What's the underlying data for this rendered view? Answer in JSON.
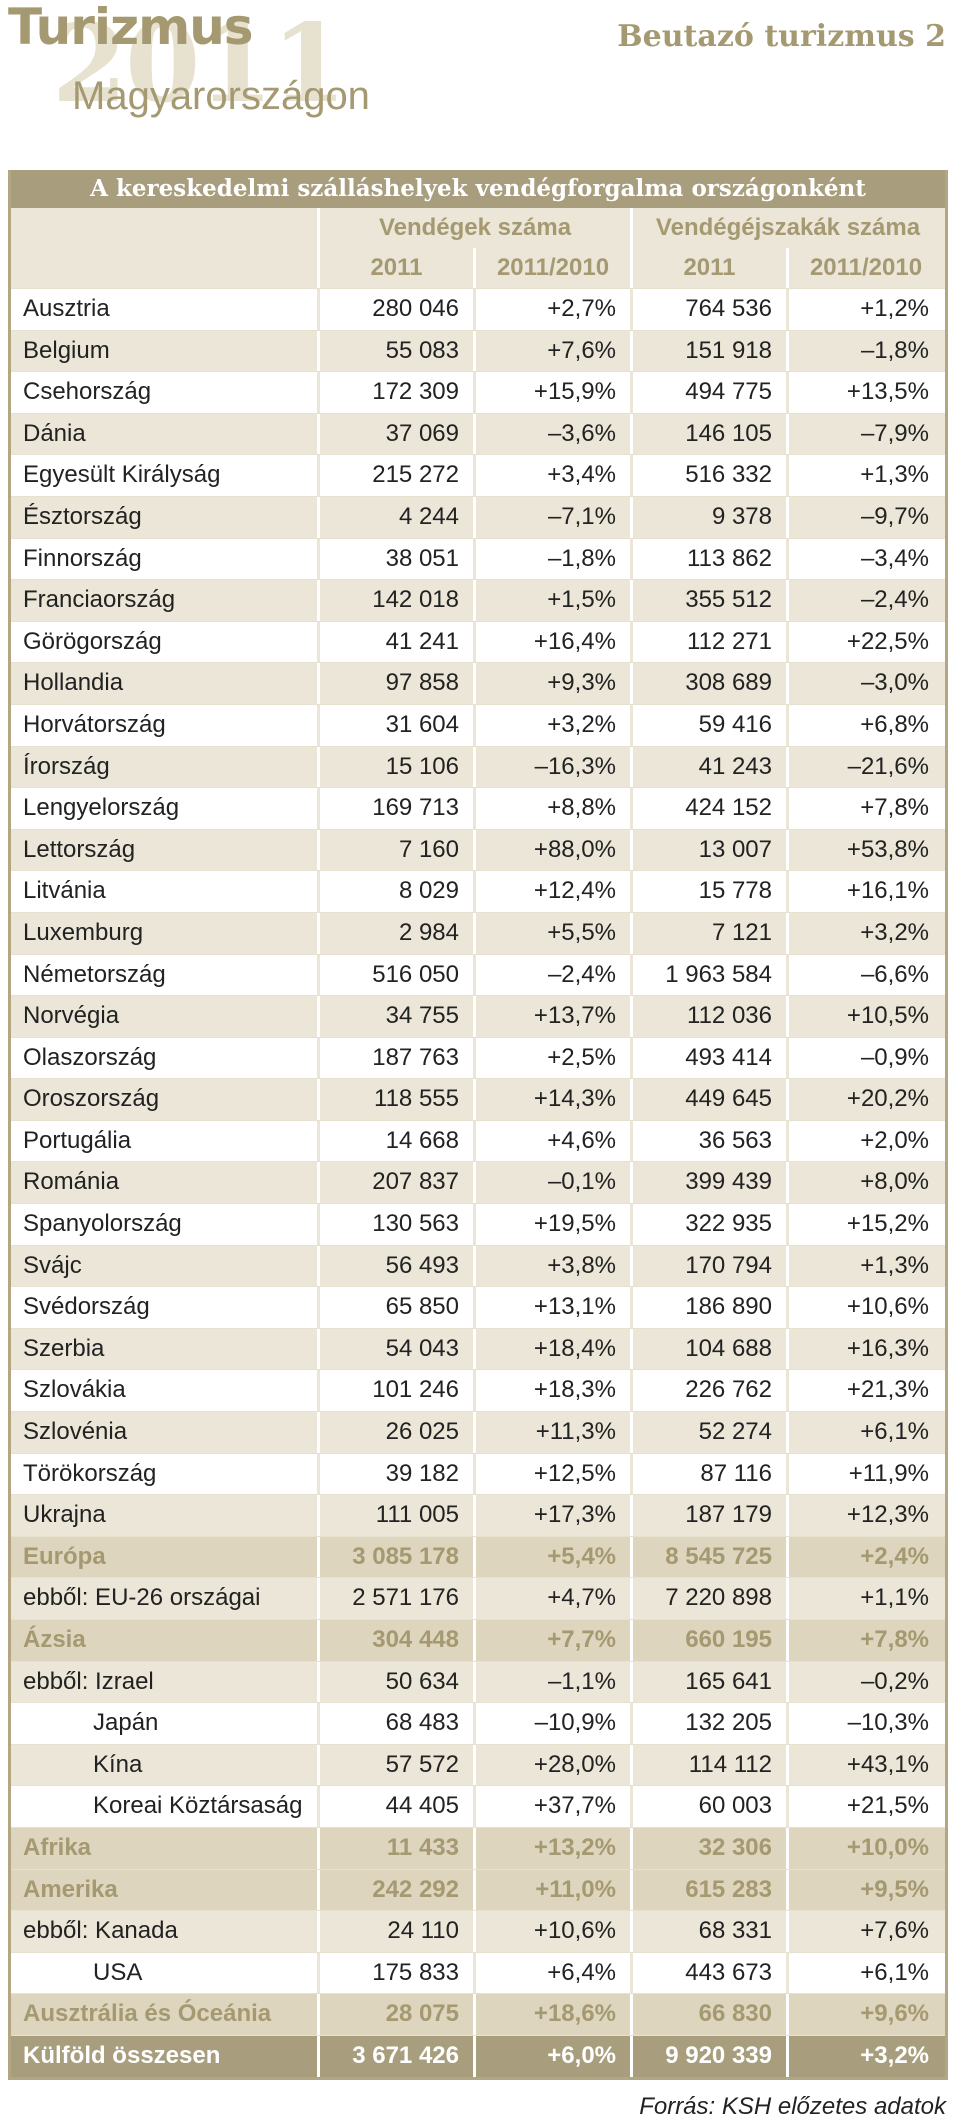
{
  "header": {
    "title": "Turizmus",
    "year": "2011",
    "subtitle": "Magyarországon",
    "right_title": "Beutazó turizmus 2"
  },
  "table": {
    "title": "A kereskedelmi szálláshelyek vendégforgalma országonként",
    "group_headers": [
      "Vendégek száma",
      "Vendégéjszakák száma"
    ],
    "sub_headers": [
      "2011",
      "2011/2010",
      "2011",
      "2011/2010"
    ],
    "rows": [
      {
        "name": "Ausztria",
        "guests": "280 046",
        "guests_change": "+2,7%",
        "nights": "764 536",
        "nights_change": "+1,2%",
        "type": "normal"
      },
      {
        "name": "Belgium",
        "guests": "55 083",
        "guests_change": "+7,6%",
        "nights": "151 918",
        "nights_change": "–1,8%",
        "type": "normal"
      },
      {
        "name": "Csehország",
        "guests": "172 309",
        "guests_change": "+15,9%",
        "nights": "494 775",
        "nights_change": "+13,5%",
        "type": "normal"
      },
      {
        "name": "Dánia",
        "guests": "37 069",
        "guests_change": "–3,6%",
        "nights": "146 105",
        "nights_change": "–7,9%",
        "type": "normal"
      },
      {
        "name": "Egyesült Királyság",
        "guests": "215 272",
        "guests_change": "+3,4%",
        "nights": "516 332",
        "nights_change": "+1,3%",
        "type": "normal"
      },
      {
        "name": "Észtország",
        "guests": "4 244",
        "guests_change": "–7,1%",
        "nights": "9 378",
        "nights_change": "–9,7%",
        "type": "normal"
      },
      {
        "name": "Finnország",
        "guests": "38 051",
        "guests_change": "–1,8%",
        "nights": "113 862",
        "nights_change": "–3,4%",
        "type": "normal"
      },
      {
        "name": "Franciaország",
        "guests": "142 018",
        "guests_change": "+1,5%",
        "nights": "355 512",
        "nights_change": "–2,4%",
        "type": "normal"
      },
      {
        "name": "Görögország",
        "guests": "41 241",
        "guests_change": "+16,4%",
        "nights": "112 271",
        "nights_change": "+22,5%",
        "type": "normal"
      },
      {
        "name": "Hollandia",
        "guests": "97 858",
        "guests_change": "+9,3%",
        "nights": "308 689",
        "nights_change": "–3,0%",
        "type": "normal"
      },
      {
        "name": "Horvátország",
        "guests": "31 604",
        "guests_change": "+3,2%",
        "nights": "59 416",
        "nights_change": "+6,8%",
        "type": "normal"
      },
      {
        "name": "Írország",
        "guests": "15 106",
        "guests_change": "–16,3%",
        "nights": "41 243",
        "nights_change": "–21,6%",
        "type": "normal"
      },
      {
        "name": "Lengyelország",
        "guests": "169 713",
        "guests_change": "+8,8%",
        "nights": "424 152",
        "nights_change": "+7,8%",
        "type": "normal"
      },
      {
        "name": "Lettország",
        "guests": "7 160",
        "guests_change": "+88,0%",
        "nights": "13 007",
        "nights_change": "+53,8%",
        "type": "normal"
      },
      {
        "name": "Litvánia",
        "guests": "8 029",
        "guests_change": "+12,4%",
        "nights": "15 778",
        "nights_change": "+16,1%",
        "type": "normal"
      },
      {
        "name": "Luxemburg",
        "guests": "2 984",
        "guests_change": "+5,5%",
        "nights": "7 121",
        "nights_change": "+3,2%",
        "type": "normal"
      },
      {
        "name": "Németország",
        "guests": "516 050",
        "guests_change": "–2,4%",
        "nights": "1 963 584",
        "nights_change": "–6,6%",
        "type": "normal"
      },
      {
        "name": "Norvégia",
        "guests": "34 755",
        "guests_change": "+13,7%",
        "nights": "112 036",
        "nights_change": "+10,5%",
        "type": "normal"
      },
      {
        "name": "Olaszország",
        "guests": "187 763",
        "guests_change": "+2,5%",
        "nights": "493 414",
        "nights_change": "–0,9%",
        "type": "normal"
      },
      {
        "name": "Oroszország",
        "guests": "118 555",
        "guests_change": "+14,3%",
        "nights": "449 645",
        "nights_change": "+20,2%",
        "type": "normal"
      },
      {
        "name": "Portugália",
        "guests": "14 668",
        "guests_change": "+4,6%",
        "nights": "36 563",
        "nights_change": "+2,0%",
        "type": "normal"
      },
      {
        "name": "Románia",
        "guests": "207 837",
        "guests_change": "–0,1%",
        "nights": "399 439",
        "nights_change": "+8,0%",
        "type": "normal"
      },
      {
        "name": "Spanyolország",
        "guests": "130 563",
        "guests_change": "+19,5%",
        "nights": "322 935",
        "nights_change": "+15,2%",
        "type": "normal"
      },
      {
        "name": "Svájc",
        "guests": "56 493",
        "guests_change": "+3,8%",
        "nights": "170 794",
        "nights_change": "+1,3%",
        "type": "normal"
      },
      {
        "name": "Svédország",
        "guests": "65 850",
        "guests_change": "+13,1%",
        "nights": "186 890",
        "nights_change": "+10,6%",
        "type": "normal"
      },
      {
        "name": "Szerbia",
        "guests": "54 043",
        "guests_change": "+18,4%",
        "nights": "104 688",
        "nights_change": "+16,3%",
        "type": "normal"
      },
      {
        "name": "Szlovákia",
        "guests": "101 246",
        "guests_change": "+18,3%",
        "nights": "226 762",
        "nights_change": "+21,3%",
        "type": "normal"
      },
      {
        "name": "Szlovénia",
        "guests": "26 025",
        "guests_change": "+11,3%",
        "nights": "52 274",
        "nights_change": "+6,1%",
        "type": "normal"
      },
      {
        "name": "Törökország",
        "guests": "39 182",
        "guests_change": "+12,5%",
        "nights": "87 116",
        "nights_change": "+11,9%",
        "type": "normal"
      },
      {
        "name": "Ukrajna",
        "guests": "111 005",
        "guests_change": "+17,3%",
        "nights": "187 179",
        "nights_change": "+12,3%",
        "type": "normal"
      },
      {
        "name": "Európa",
        "guests": "3 085 178",
        "guests_change": "+5,4%",
        "nights": "8 545 725",
        "nights_change": "+2,4%",
        "type": "region"
      },
      {
        "name": "ebből: EU-26 országai",
        "guests": "2 571 176",
        "guests_change": "+4,7%",
        "nights": "7 220 898",
        "nights_change": "+1,1%",
        "type": "normal"
      },
      {
        "name": "Ázsia",
        "guests": "304 448",
        "guests_change": "+7,7%",
        "nights": "660 195",
        "nights_change": "+7,8%",
        "type": "region"
      },
      {
        "name": "ebből: Izrael",
        "guests": "50 634",
        "guests_change": "–1,1%",
        "nights": "165 641",
        "nights_change": "–0,2%",
        "type": "normal"
      },
      {
        "name": "Japán",
        "guests": "68 483",
        "guests_change": "–10,9%",
        "nights": "132 205",
        "nights_change": "–10,3%",
        "type": "indent"
      },
      {
        "name": "Kína",
        "guests": "57 572",
        "guests_change": "+28,0%",
        "nights": "114 112",
        "nights_change": "+43,1%",
        "type": "indent"
      },
      {
        "name": "Koreai Köztársaság",
        "guests": "44 405",
        "guests_change": "+37,7%",
        "nights": "60 003",
        "nights_change": "+21,5%",
        "type": "indent"
      },
      {
        "name": "Afrika",
        "guests": "11 433",
        "guests_change": "+13,2%",
        "nights": "32 306",
        "nights_change": "+10,0%",
        "type": "region"
      },
      {
        "name": "Amerika",
        "guests": "242 292",
        "guests_change": "+11,0%",
        "nights": "615 283",
        "nights_change": "+9,5%",
        "type": "region"
      },
      {
        "name": "ebből: Kanada",
        "guests": "24 110",
        "guests_change": "+10,6%",
        "nights": "68 331",
        "nights_change": "+7,6%",
        "type": "normal"
      },
      {
        "name": "USA",
        "guests": "175 833",
        "guests_change": "+6,4%",
        "nights": "443 673",
        "nights_change": "+6,1%",
        "type": "indent"
      },
      {
        "name": "Ausztrália és Óceánia",
        "guests": "28 075",
        "guests_change": "+18,6%",
        "nights": "66 830",
        "nights_change": "+9,6%",
        "type": "region"
      },
      {
        "name": "Külföld összesen",
        "guests": "3 671 426",
        "guests_change": "+6,0%",
        "nights": "9 920 339",
        "nights_change": "+3,2%",
        "type": "total"
      }
    ]
  },
  "source": "Forrás: KSH előzetes adatok",
  "colors": {
    "accent": "#a59972",
    "title_bar": "#a89e7e",
    "band": "#ebe6d7",
    "region_band": "#ddd5bd"
  }
}
